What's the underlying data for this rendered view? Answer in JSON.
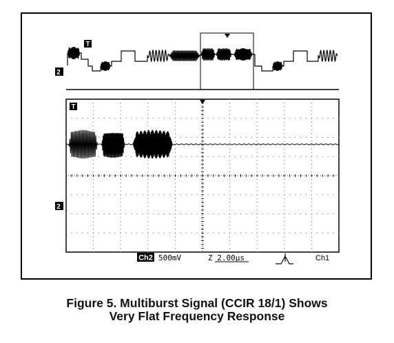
{
  "chart_data": {
    "type": "line",
    "title": "",
    "overview": {
      "ground_marker": "2",
      "trigger_marker": "T",
      "description_free": true
    },
    "main": {
      "trigger_marker": "T",
      "ground_marker": "2",
      "series": [
        {
          "name": "",
          "bursts": [
            {
              "start_div": 0.1,
              "end_div": 1.15,
              "cycles": 21,
              "amplitude_div": 0.75
            },
            {
              "start_div": 1.3,
              "end_div": 2.15,
              "cycles": 27,
              "amplitude_div": 0.7
            },
            {
              "start_div": 2.45,
              "end_div": 3.9,
              "cycles": 60,
              "amplitude_div": 0.75
            }
          ]
        }
      ],
      "grid": true,
      "divisions_x": 10,
      "divisions_y": 8
    },
    "readout": {
      "channel": "Ch2",
      "volts_per_div": "500mV",
      "timebase": "Z 2.00µs",
      "trigger_source": "Ch1"
    }
  },
  "caption": {
    "line1": "Figure 5. Multiburst Signal (CCIR 18/1) Shows",
    "line2": "Very Flat Frequency Response"
  }
}
